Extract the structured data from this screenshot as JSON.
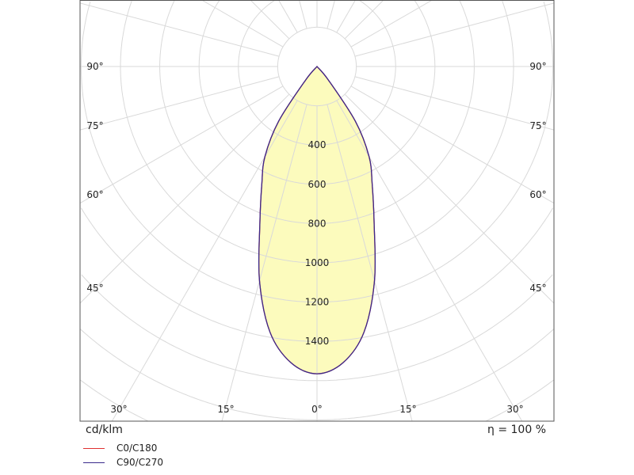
{
  "chart_data": {
    "type": "polar",
    "unit_label": "cd/klm",
    "efficiency_label": "η = 100 %",
    "radial_ticks": [
      400,
      600,
      800,
      1000,
      1200,
      1400
    ],
    "radial_tick_labels": [
      "400",
      "600",
      "800",
      "1000",
      "1200",
      "1400"
    ],
    "ring_step": 200,
    "angle_step_deg": 15,
    "angle_labels_left": [
      "90°",
      "75°",
      "60°",
      "45°",
      "30°",
      "15°"
    ],
    "angle_labels_right": [
      "90°",
      "75°",
      "60°",
      "45°",
      "30°",
      "15°"
    ],
    "angle_label_center": "0°",
    "grid": true,
    "legend_position": "bottom-left",
    "angles_deg": [
      0,
      5,
      10,
      15,
      20,
      25,
      30,
      35,
      40,
      45
    ],
    "series": [
      {
        "name": "C0/C180",
        "color": "#e03030",
        "values": [
          1565,
          1515,
          1375,
          1130,
          850,
          665,
          530,
          340,
          90,
          0
        ]
      },
      {
        "name": "C90/C270",
        "color": "#3a2a8c",
        "values": [
          1565,
          1515,
          1375,
          1130,
          850,
          665,
          530,
          340,
          90,
          0
        ]
      }
    ],
    "fill_color": "#fcfbbd",
    "grid_color": "#d9d9d9"
  }
}
